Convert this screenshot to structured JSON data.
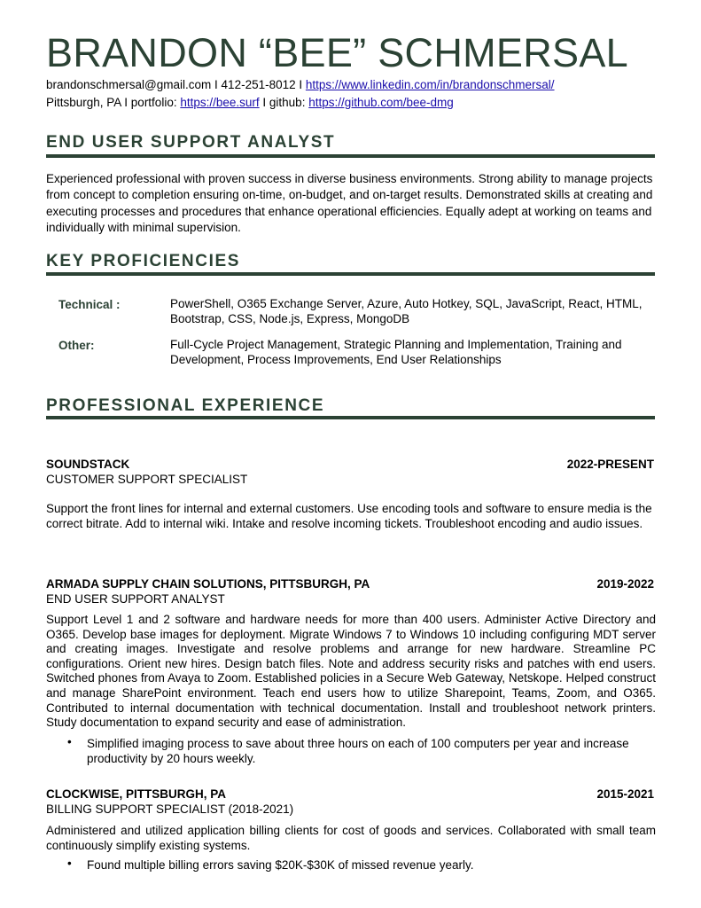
{
  "header": {
    "name": "BRANDON “BEE” SCHMERSAL",
    "email": "brandonschmersal@gmail.com",
    "sep1": " I ",
    "phone": "412-251-8012",
    "sep2": " I ",
    "linkedin": "https://www.linkedin.com/in/brandonschmersal/",
    "location": "Pittsburgh, PA",
    "portfolio_label": " I portfolio: ",
    "portfolio": "https://bee.surf",
    "github_label": " I github: ",
    "github": "https://github.com/bee-dmg"
  },
  "summary": {
    "title": "END USER SUPPORT ANALYST",
    "text": "Experienced professional with proven success in diverse business environments. Strong ability to manage projects from concept to completion ensuring on-time, on-budget, and on-target results. Demonstrated skills at creating and executing processes and procedures that enhance operational efficiencies. Equally adept at working on teams and individually with minimal supervision."
  },
  "proficiencies": {
    "title": "KEY PROFICIENCIES",
    "items": [
      {
        "label": "Technical :",
        "value": "PowerShell, O365 Exchange Server, Azure, Auto Hotkey, SQL, JavaScript, React, HTML, Bootstrap, CSS, Node.js, Express, MongoDB"
      },
      {
        "label": "Other:",
        "value": "Full-Cycle Project Management, Strategic Planning and Implementation, Training and Development, Process Improvements, End User Relationships"
      }
    ]
  },
  "experience": {
    "title": "PROFESSIONAL EXPERIENCE",
    "jobs": [
      {
        "company": "SOUNDSTACK",
        "dates": "2022-PRESENT",
        "role": "CUSTOMER SUPPORT SPECIALIST",
        "description": "Support the front lines for internal and external customers. Use encoding tools and software to ensure media is the correct bitrate. Add to internal wiki. Intake and resolve incoming tickets. Troubleshoot encoding and audio issues.",
        "bullets": []
      },
      {
        "company": "ARMADA SUPPLY CHAIN SOLUTIONS, PITTSBURGH, PA",
        "dates": "2019-2022",
        "role": "END USER SUPPORT ANALYST",
        "description": "Support Level 1 and 2 software and hardware needs for more than 400 users. Administer Active Directory and O365. Develop base images for deployment. Migrate Windows 7 to Windows 10 including configuring MDT server and creating images. Investigate and resolve problems and arrange for new hardware. Streamline PC configurations. Orient new hires. Design batch files. Note and address security risks and patches with end users. Switched phones from Avaya to Zoom. Established policies in a Secure Web Gateway, Netskope. Helped construct and manage SharePoint environment. Teach end users how to utilize Sharepoint, Teams, Zoom, and O365. Contributed to internal documentation with technical documentation. Install and troubleshoot network printers. Study documentation to expand security and ease of administration.",
        "bullets": [
          "Simplified imaging process to save about three hours on each of 100 computers per year and increase productivity by 20 hours weekly."
        ]
      },
      {
        "company": "CLOCKWISE, PITTSBURGH, PA",
        "dates": "2015-2021",
        "role": "BILLING SUPPORT SPECIALIST (2018-2021)",
        "description": "Administered and utilized application billing clients for cost of goods and services. Collaborated with small team continuously simplify existing systems.",
        "bullets": [
          "Found multiple billing errors saving $20K-$30K of missed revenue yearly."
        ]
      }
    ]
  },
  "colors": {
    "accent": "#2b4234",
    "link": "#1a0dab"
  },
  "bullet_glyph": "•"
}
